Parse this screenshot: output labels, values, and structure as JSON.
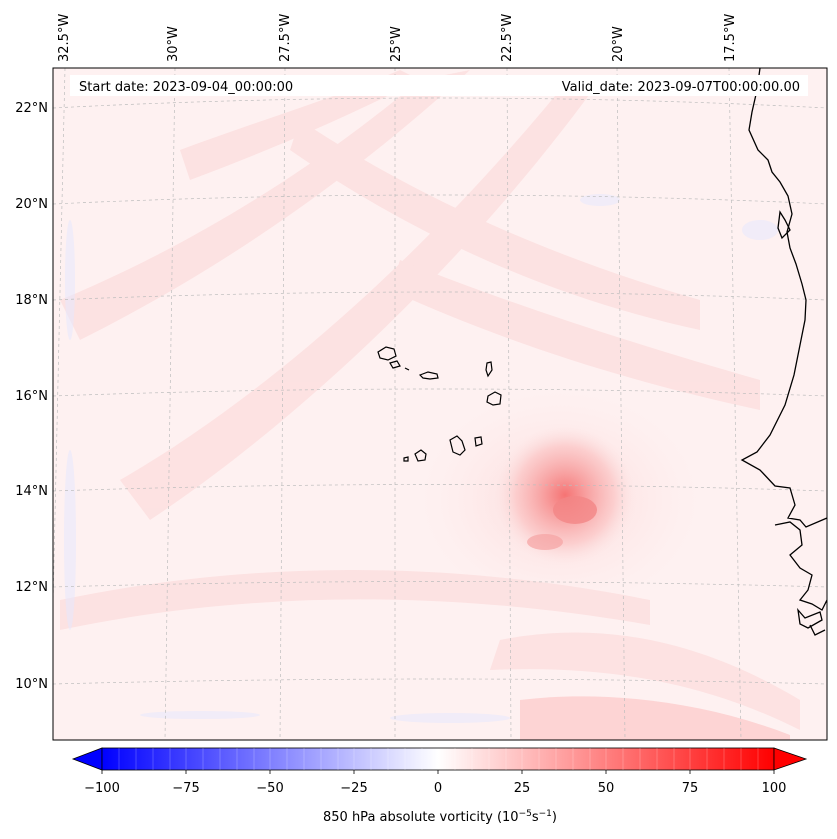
{
  "map": {
    "start_date_text": "Start date: 2023-09-04_00:00:00",
    "valid_date_text": "Valid_date: 2023-09-07T00:00:00.00",
    "lon_labels": [
      "32.5°W",
      "30°W",
      "27.5°W",
      "25°W",
      "22.5°W",
      "20°W",
      "17.5°W"
    ],
    "lat_labels": [
      "22°N",
      "20°N",
      "18°N",
      "16°N",
      "14°N",
      "12°N",
      "10°N"
    ],
    "vorticity_max_center": "≈14°N, 20.5°W"
  },
  "colorbar": {
    "ticks": [
      "−100",
      "−75",
      "−50",
      "−25",
      "0",
      "25",
      "50",
      "75",
      "100"
    ],
    "range": [
      -100,
      100
    ],
    "label": "850 hPa absolute vorticity (10",
    "label_exp1": "−5",
    "label_mid": "s",
    "label_exp2": "−1",
    "label_end": ")",
    "color_low": "#0000ff",
    "color_mid": "#ffffff",
    "color_high": "#ff0000"
  }
}
